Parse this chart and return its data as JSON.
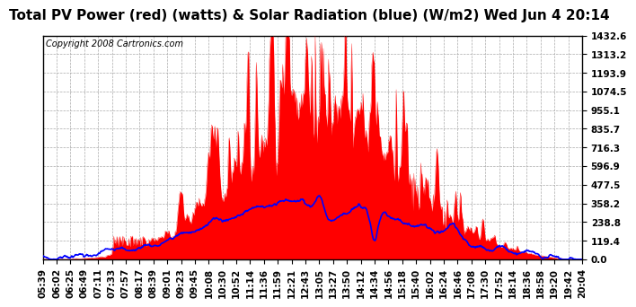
{
  "title": "Total PV Power (red) (watts) & Solar Radiation (blue) (W/m2) Wed Jun 4 20:14",
  "copyright": "Copyright 2008 Cartronics.com",
  "background_color": "#ffffff",
  "plot_bg_color": "#ffffff",
  "grid_color": "#aaaaaa",
  "yticks": [
    0.0,
    119.4,
    238.8,
    358.2,
    477.5,
    596.9,
    716.3,
    835.7,
    955.1,
    1074.5,
    1193.9,
    1313.2,
    1432.6
  ],
  "ylim": [
    0,
    1432.6
  ],
  "title_fontsize": 11,
  "copyright_fontsize": 7,
  "tick_fontsize": 7.5,
  "x_tick_labels": [
    "05:39",
    "06:02",
    "06:25",
    "06:49",
    "07:11",
    "07:33",
    "07:57",
    "08:17",
    "08:39",
    "09:01",
    "09:23",
    "09:45",
    "10:08",
    "10:30",
    "10:52",
    "11:14",
    "11:36",
    "11:59",
    "12:21",
    "12:43",
    "13:05",
    "13:27",
    "13:50",
    "14:12",
    "14:34",
    "14:56",
    "15:18",
    "15:40",
    "16:02",
    "16:24",
    "16:46",
    "17:08",
    "17:30",
    "17:52",
    "18:14",
    "18:36",
    "18:58",
    "19:20",
    "19:42",
    "20:04"
  ],
  "pv_color": "#ff0000",
  "solar_color": "#0000ff",
  "solar_linewidth": 1.2,
  "num_points": 860
}
